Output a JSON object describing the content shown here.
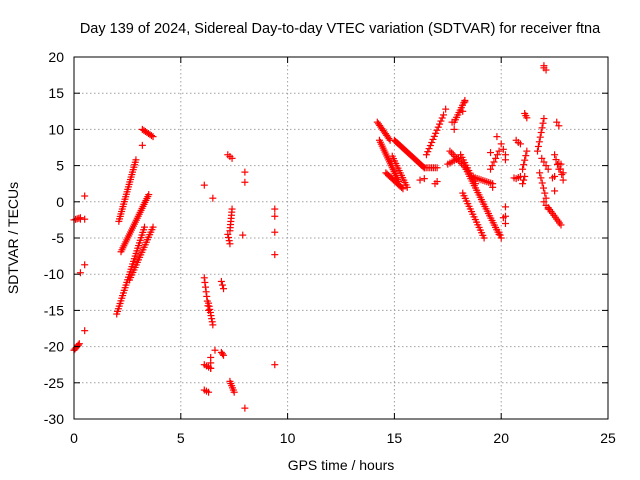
{
  "chart_data": {
    "type": "scatter",
    "title": "Day 139 of 2024, Sidereal Day-to-day VTEC variation (SDTVAR) for receiver ftna",
    "xlabel": "GPS time / hours",
    "ylabel": "SDTVAR / TECUs",
    "xlim": [
      0,
      25
    ],
    "ylim": [
      -30,
      20
    ],
    "x_ticks": [
      0,
      5,
      10,
      15,
      20,
      25
    ],
    "y_ticks": [
      -30,
      -25,
      -20,
      -15,
      -10,
      -5,
      0,
      5,
      10,
      15,
      20
    ],
    "x_tick_labels": [
      "0",
      "5",
      "10",
      "15",
      "20",
      "25"
    ],
    "y_tick_labels": [
      "-30",
      "-25",
      "-20",
      "-15",
      "-10",
      "-5",
      "0",
      "5",
      "10",
      "15",
      "20"
    ],
    "grid": true,
    "marker": "+",
    "color": "#ff0000",
    "segments": [
      {
        "from": [
          0.0,
          -2.5
        ],
        "to": [
          0.3,
          -2.2
        ],
        "n": 5
      },
      {
        "from": [
          0.3,
          -2.4
        ],
        "to": [
          0.5,
          -2.4
        ],
        "n": 2
      },
      {
        "from": [
          0.0,
          -20.5
        ],
        "to": [
          0.25,
          -19.6
        ],
        "n": 6
      },
      {
        "from": [
          2.0,
          -15.5
        ],
        "to": [
          3.3,
          -3.5
        ],
        "n": 34
      },
      {
        "from": [
          2.1,
          -2.7
        ],
        "to": [
          2.9,
          5.8
        ],
        "n": 26
      },
      {
        "from": [
          2.2,
          -6.9
        ],
        "to": [
          3.5,
          1.0
        ],
        "n": 30
      },
      {
        "from": [
          2.6,
          -10.8
        ],
        "to": [
          3.7,
          -3.5
        ],
        "n": 22
      },
      {
        "from": [
          3.2,
          10.0
        ],
        "to": [
          3.7,
          9.0
        ],
        "n": 8
      },
      {
        "from": [
          6.1,
          -10.5
        ],
        "to": [
          6.3,
          -15.0
        ],
        "n": 8
      },
      {
        "from": [
          6.1,
          -22.5
        ],
        "to": [
          6.4,
          -23.0
        ],
        "n": 4
      },
      {
        "from": [
          6.1,
          -26.0
        ],
        "to": [
          6.3,
          -26.3
        ],
        "n": 3
      },
      {
        "from": [
          6.3,
          -14.0
        ],
        "to": [
          6.5,
          -17.0
        ],
        "n": 8
      },
      {
        "from": [
          6.4,
          -21.5
        ],
        "to": [
          6.4,
          -23.0
        ],
        "n": 3
      },
      {
        "from": [
          7.3,
          -4.0
        ],
        "to": [
          7.4,
          -1.0
        ],
        "n": 8
      },
      {
        "from": [
          7.2,
          -4.5
        ],
        "to": [
          7.3,
          -5.8
        ],
        "n": 4
      },
      {
        "from": [
          7.3,
          -24.8
        ],
        "to": [
          7.5,
          -26.3
        ],
        "n": 6
      },
      {
        "from": [
          7.2,
          6.5
        ],
        "to": [
          7.4,
          6.0
        ],
        "n": 3
      },
      {
        "from": [
          6.9,
          -11.0
        ],
        "to": [
          7.0,
          -12.0
        ],
        "n": 3
      },
      {
        "from": [
          6.9,
          -20.8
        ],
        "to": [
          7.0,
          -21.2
        ],
        "n": 3
      },
      {
        "from": [
          14.2,
          11.0
        ],
        "to": [
          14.8,
          8.5
        ],
        "n": 12
      },
      {
        "from": [
          14.3,
          8.5
        ],
        "to": [
          15.2,
          2.8
        ],
        "n": 22
      },
      {
        "from": [
          14.6,
          4.0
        ],
        "to": [
          15.4,
          1.8
        ],
        "n": 14
      },
      {
        "from": [
          14.9,
          6.3
        ],
        "to": [
          15.6,
          2.0
        ],
        "n": 14
      },
      {
        "from": [
          15.0,
          8.5
        ],
        "to": [
          16.4,
          4.7
        ],
        "n": 26
      },
      {
        "from": [
          16.4,
          4.7
        ],
        "to": [
          17.0,
          4.7
        ],
        "n": 8
      },
      {
        "from": [
          16.5,
          6.5
        ],
        "to": [
          17.3,
          12.0
        ],
        "n": 14
      },
      {
        "from": [
          17.5,
          5.2
        ],
        "to": [
          18.0,
          6.0
        ],
        "n": 6
      },
      {
        "from": [
          17.8,
          11.0
        ],
        "to": [
          18.3,
          14.0
        ],
        "n": 10
      },
      {
        "from": [
          17.6,
          7.0
        ],
        "to": [
          18.3,
          4.8
        ],
        "n": 10
      },
      {
        "from": [
          18.3,
          4.8
        ],
        "to": [
          19.9,
          -4.5
        ],
        "n": 30
      },
      {
        "from": [
          18.1,
          6.5
        ],
        "to": [
          18.8,
          2.5
        ],
        "n": 12
      },
      {
        "from": [
          18.2,
          1.2
        ],
        "to": [
          19.2,
          -5.0
        ],
        "n": 18
      },
      {
        "from": [
          18.6,
          3.5
        ],
        "to": [
          19.6,
          2.5
        ],
        "n": 12
      },
      {
        "from": [
          19.5,
          4.5
        ],
        "to": [
          19.9,
          7.0
        ],
        "n": 6
      },
      {
        "from": [
          19.9,
          -4.2
        ],
        "to": [
          20.0,
          -5.0
        ],
        "n": 3
      },
      {
        "from": [
          20.0,
          8.0
        ],
        "to": [
          20.2,
          6.5
        ],
        "n": 3
      },
      {
        "from": [
          20.7,
          3.2
        ],
        "to": [
          20.9,
          3.5
        ],
        "n": 3
      },
      {
        "from": [
          20.8,
          8.2
        ],
        "to": [
          20.9,
          8.0
        ],
        "n": 2
      },
      {
        "from": [
          21.0,
          4.5
        ],
        "to": [
          21.2,
          7.0
        ],
        "n": 5
      },
      {
        "from": [
          21.0,
          2.5
        ],
        "to": [
          21.1,
          3.5
        ],
        "n": 3
      },
      {
        "from": [
          21.1,
          12.2
        ],
        "to": [
          21.2,
          11.6
        ],
        "n": 3
      },
      {
        "from": [
          21.7,
          7.0
        ],
        "to": [
          22.0,
          11.5
        ],
        "n": 8
      },
      {
        "from": [
          21.8,
          4.0
        ],
        "to": [
          22.1,
          0.5
        ],
        "n": 6
      },
      {
        "from": [
          21.9,
          6.0
        ],
        "to": [
          22.2,
          4.5
        ],
        "n": 4
      },
      {
        "from": [
          22.0,
          0.0
        ],
        "to": [
          22.2,
          -1.0
        ],
        "n": 3
      },
      {
        "from": [
          22.2,
          -0.8
        ],
        "to": [
          22.8,
          -3.2
        ],
        "n": 10
      },
      {
        "from": [
          22.5,
          6.5
        ],
        "to": [
          22.7,
          4.5
        ],
        "n": 4
      },
      {
        "from": [
          22.6,
          11.0
        ],
        "to": [
          22.7,
          10.5
        ],
        "n": 2
      },
      {
        "from": [
          22.7,
          5.3
        ],
        "to": [
          22.9,
          3.0
        ],
        "n": 4
      }
    ],
    "points": [
      [
        0.5,
        0.8
      ],
      [
        0.5,
        -8.7
      ],
      [
        0.5,
        -17.8
      ],
      [
        0.3,
        -9.8
      ],
      [
        0.2,
        -19.8
      ],
      [
        3.2,
        7.8
      ],
      [
        6.1,
        2.3
      ],
      [
        6.5,
        0.5
      ],
      [
        6.6,
        -20.5
      ],
      [
        8.0,
        4.1
      ],
      [
        8.0,
        2.7
      ],
      [
        7.9,
        -4.6
      ],
      [
        8.0,
        -28.5
      ],
      [
        9.4,
        -1.0
      ],
      [
        9.4,
        -2.0
      ],
      [
        9.4,
        -4.2
      ],
      [
        9.4,
        -7.3
      ],
      [
        9.4,
        -22.5
      ],
      [
        16.2,
        3.0
      ],
      [
        16.4,
        3.2
      ],
      [
        16.9,
        2.5
      ],
      [
        17.0,
        2.8
      ],
      [
        17.4,
        12.8
      ],
      [
        17.8,
        10.0
      ],
      [
        17.7,
        11.0
      ],
      [
        18.3,
        13.8
      ],
      [
        18.2,
        12.5
      ],
      [
        19.6,
        2.0
      ],
      [
        19.5,
        6.8
      ],
      [
        19.8,
        9.0
      ],
      [
        20.2,
        5.8
      ],
      [
        20.2,
        -0.7
      ],
      [
        20.2,
        -3.0
      ],
      [
        20.1,
        -2.2
      ],
      [
        20.2,
        -2.0
      ],
      [
        20.7,
        8.5
      ],
      [
        20.6,
        3.3
      ],
      [
        22.0,
        18.5
      ],
      [
        22.1,
        18.2
      ],
      [
        22.0,
        18.8
      ],
      [
        22.5,
        3.5
      ],
      [
        22.5,
        1.5
      ],
      [
        22.4,
        3.3
      ],
      [
        22.8,
        5.2
      ],
      [
        22.9,
        4.0
      ]
    ]
  }
}
